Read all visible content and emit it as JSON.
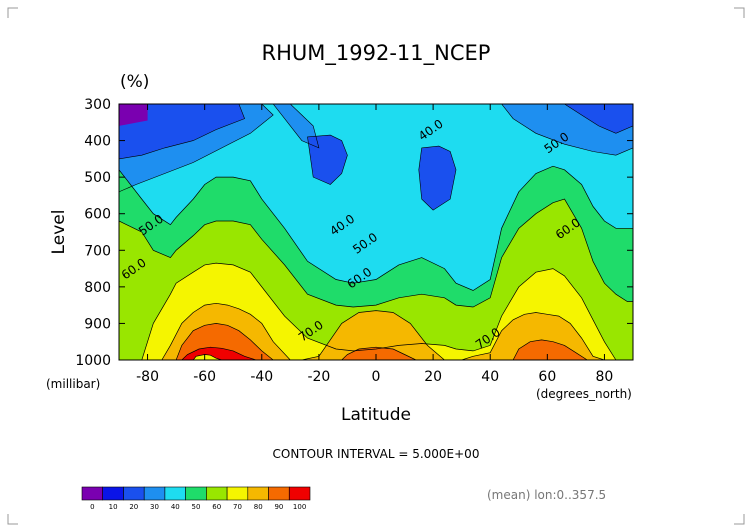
{
  "chart_data": {
    "type": "contour",
    "title": "RHUM_1992-11_NCEP",
    "units": "(%)",
    "xlabel": "Latitude",
    "ylabel": "Level",
    "x_units": "(degrees_north)",
    "y_units": "(millibar)",
    "x_ticks": [
      "-80",
      "-60",
      "-40",
      "-20",
      "0",
      "20",
      "40",
      "60",
      "80"
    ],
    "y_ticks": [
      "300",
      "400",
      "500",
      "600",
      "700",
      "800",
      "900",
      "1000"
    ],
    "xlim": [
      -90,
      90
    ],
    "ylim": [
      1000,
      300
    ],
    "contour_interval_text": "CONTOUR INTERVAL = 5.000E+00",
    "footer_text": "(mean) lon:0..357.5",
    "colorbar": {
      "labels": [
        "0",
        "10",
        "20",
        "30",
        "40",
        "50",
        "60",
        "70",
        "80",
        "90",
        "100"
      ],
      "colors": [
        "#7a00b0",
        "#0a14e8",
        "#1a50ee",
        "#1e8ff0",
        "#1edcf0",
        "#1fdc6a",
        "#99e600",
        "#f5f500",
        "#f5b800",
        "#f56a00",
        "#f00000"
      ]
    },
    "contour_labels": [
      {
        "text": "40.0",
        "lat": 20,
        "lev": 380
      },
      {
        "text": "50.0",
        "lat": 64,
        "lev": 415
      },
      {
        "text": "40.0",
        "lat": -11,
        "lev": 640
      },
      {
        "text": "50.0",
        "lat": -3,
        "lev": 690
      },
      {
        "text": "60.0",
        "lat": -5,
        "lev": 785
      },
      {
        "text": "50.0",
        "lat": -78,
        "lev": 640
      },
      {
        "text": "60.0",
        "lat": -84,
        "lev": 760
      },
      {
        "text": "60.0",
        "lat": 68,
        "lev": 650
      },
      {
        "text": "70.0",
        "lat": -22,
        "lev": 930
      },
      {
        "text": "70.0",
        "lat": 40,
        "lev": 950
      }
    ],
    "regions": [
      {
        "bin": 1,
        "lat": [
          -90,
          -82,
          -78,
          -72,
          -70,
          -64,
          -60,
          -56,
          -50,
          -44,
          -40,
          -32,
          -24,
          -14,
          -8,
          0,
          8,
          16,
          24,
          28,
          34,
          40,
          44,
          50,
          56,
          62,
          66,
          72,
          76,
          80,
          84,
          88,
          90
        ],
        "lev": [
          480,
          560,
          600,
          630,
          610,
          560,
          520,
          500,
          500,
          510,
          560,
          640,
          730,
          780,
          790,
          780,
          740,
          720,
          750,
          790,
          810,
          780,
          640,
          540,
          490,
          470,
          480,
          520,
          580,
          620,
          640,
          640,
          640
        ]
      },
      {
        "bin": 2,
        "lat": [
          -90,
          -82,
          -78,
          -72,
          -70,
          -64,
          -60,
          -56,
          -50,
          -44,
          -40,
          -32,
          -24,
          -14,
          -8,
          0,
          8,
          16,
          24,
          28,
          34,
          40,
          44,
          50,
          56,
          62,
          66,
          72,
          76,
          80,
          84,
          88,
          90
        ],
        "lev": [
          620,
          650,
          700,
          720,
          700,
          660,
          630,
          620,
          620,
          630,
          670,
          740,
          820,
          850,
          855,
          850,
          830,
          820,
          830,
          850,
          855,
          830,
          720,
          640,
          600,
          570,
          560,
          640,
          730,
          790,
          820,
          840,
          840
        ]
      },
      {
        "bin": 3,
        "lat": [
          -90,
          -82,
          -78,
          -72,
          -70,
          -64,
          -60,
          -56,
          -50,
          -44,
          -40,
          -32,
          -24,
          -14,
          -8,
          0,
          8,
          16,
          24,
          28,
          34,
          40,
          44,
          50,
          56,
          62,
          66,
          72,
          76,
          80,
          84,
          88,
          90
        ],
        "lev": [
          1000,
          1000,
          900,
          820,
          790,
          760,
          740,
          735,
          740,
          760,
          800,
          880,
          940,
          970,
          975,
          970,
          960,
          955,
          960,
          970,
          975,
          960,
          880,
          800,
          760,
          750,
          770,
          830,
          890,
          950,
          1000,
          1000,
          1000
        ]
      },
      {
        "bin": 4,
        "lat": [
          -90,
          -75,
          -72,
          -68,
          -64,
          -60,
          -56,
          -52,
          -48,
          -44,
          -40,
          -36,
          -30,
          -26,
          -20,
          -12,
          -6,
          0,
          6,
          12,
          18,
          24,
          30,
          34,
          40,
          44,
          48,
          52,
          56,
          60,
          64,
          68,
          72,
          76,
          80,
          90
        ],
        "lev": [
          1000,
          1000,
          960,
          900,
          870,
          850,
          845,
          850,
          860,
          875,
          900,
          950,
          1000,
          1000,
          990,
          900,
          870,
          865,
          870,
          900,
          960,
          1000,
          1000,
          990,
          980,
          920,
          890,
          875,
          870,
          875,
          880,
          900,
          940,
          990,
          1000,
          1000
        ]
      },
      {
        "bin": 5,
        "lat": [
          -90,
          -70,
          -68,
          -64,
          -60,
          -56,
          -52,
          -48,
          -44,
          -40,
          -36,
          -32,
          -12,
          -10,
          -6,
          0,
          6,
          10,
          14,
          48,
          50,
          54,
          58,
          62,
          66,
          70,
          74,
          90
        ],
        "lev": [
          1000,
          1000,
          960,
          920,
          905,
          900,
          905,
          920,
          945,
          975,
          1000,
          1000,
          1000,
          985,
          970,
          965,
          970,
          985,
          1000,
          1000,
          970,
          950,
          945,
          950,
          960,
          980,
          1000,
          1000
        ]
      },
      {
        "bin": 6,
        "lat": [
          -90,
          -68,
          -66,
          -62,
          -58,
          -54,
          -50,
          -46,
          -42,
          -90
        ],
        "lev": [
          1000,
          1000,
          985,
          970,
          965,
          968,
          975,
          990,
          1000,
          1000
        ]
      },
      {
        "bin": 7,
        "lat": [
          -90,
          -64,
          -63,
          -60,
          -58,
          -56,
          -54,
          -90
        ],
        "lev": [
          1000,
          1000,
          990,
          985,
          987,
          995,
          1000,
          1000
        ]
      }
    ],
    "top_regions": [
      {
        "bin": 1,
        "lat": [
          -90,
          -84,
          -80,
          -76,
          -72,
          -68,
          -64,
          -60,
          -54,
          -48,
          -90
        ],
        "lev": [
          300,
          300,
          300,
          300,
          300,
          300,
          300,
          300,
          300,
          300,
          300
        ]
      },
      {
        "bin": 0,
        "lat": [
          -90,
          -80,
          -80,
          -90
        ],
        "lev": [
          300,
          300,
          345,
          360
        ]
      }
    ],
    "moist_blobs": [
      {
        "bin": 2,
        "lat": [
          -90,
          -48,
          -46,
          -56,
          -64,
          -74,
          -82,
          -90
        ],
        "lev": [
          300,
          300,
          340,
          370,
          400,
          420,
          440,
          450
        ]
      },
      {
        "bin": 2,
        "lat": [
          66,
          90,
          90,
          84,
          78,
          72
        ],
        "lev": [
          300,
          300,
          360,
          380,
          360,
          330
        ]
      },
      {
        "bin": 3,
        "lat": [
          -90,
          -40,
          -36,
          -44,
          -54,
          -64,
          -74,
          -84,
          -90
        ],
        "lev": [
          300,
          300,
          330,
          380,
          420,
          460,
          490,
          520,
          540
        ]
      },
      {
        "bin": 3,
        "lat": [
          -36,
          -30,
          -26,
          -22,
          -20,
          -26,
          -32
        ],
        "lev": [
          300,
          300,
          330,
          360,
          420,
          400,
          340
        ]
      },
      {
        "bin": 3,
        "lat": [
          44,
          90,
          90,
          84,
          76,
          66,
          56,
          48
        ],
        "lev": [
          300,
          300,
          420,
          440,
          430,
          410,
          380,
          340
        ]
      },
      {
        "bin": 2,
        "lat": [
          -24,
          -16,
          -12,
          -10,
          -12,
          -16,
          -22
        ],
        "lev": [
          390,
          385,
          400,
          440,
          490,
          520,
          500
        ]
      },
      {
        "bin": 2,
        "lat": [
          16,
          22,
          26,
          28,
          26,
          20,
          16,
          15
        ],
        "lev": [
          420,
          415,
          430,
          480,
          560,
          590,
          560,
          480
        ]
      }
    ]
  }
}
